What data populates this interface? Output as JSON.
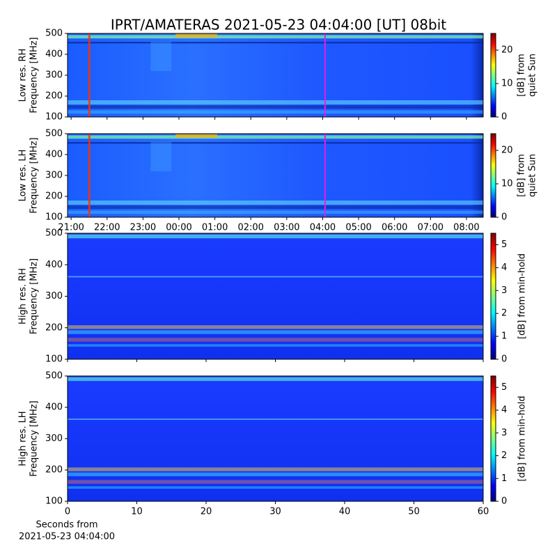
{
  "title": "IPRT/AMATERAS 2021-05-23 04:04:00 [UT]   08bit",
  "chart_data": [
    {
      "type": "heatmap",
      "ylabel": [
        "Low res. RH",
        "Frequency [MHz]"
      ],
      "ylim": [
        100,
        500
      ],
      "yticks": [
        100,
        200,
        300,
        400,
        500
      ],
      "xlim": [
        "20:54",
        "08:28"
      ],
      "xticks": [
        "21:00",
        "22:00",
        "23:00",
        "00:00",
        "01:00",
        "02:00",
        "03:00",
        "04:00",
        "05:00",
        "06:00",
        "07:00",
        "08:00"
      ],
      "show_xtick_labels": false,
      "marker_x": "04:04",
      "marker_color": "#e020e0",
      "colorbar": {
        "label": [
          "[dB] from",
          "quiet Sun"
        ],
        "lim": [
          0,
          25
        ],
        "ticks": [
          0,
          10,
          20
        ]
      }
    },
    {
      "type": "heatmap",
      "ylabel": [
        "Low res. LH",
        "Frequency [MHz]"
      ],
      "ylim": [
        100,
        500
      ],
      "yticks": [
        100,
        200,
        300,
        400,
        500
      ],
      "xlim": [
        "20:54",
        "08:28"
      ],
      "xticks": [
        "21:00",
        "22:00",
        "23:00",
        "00:00",
        "01:00",
        "02:00",
        "03:00",
        "04:00",
        "05:00",
        "06:00",
        "07:00",
        "08:00"
      ],
      "show_xtick_labels": true,
      "marker_x": "04:04",
      "marker_color": "#e020e0",
      "colorbar": {
        "label": [
          "[dB] from",
          "quiet Sun"
        ],
        "lim": [
          0,
          25
        ],
        "ticks": [
          0,
          10,
          20
        ]
      }
    },
    {
      "type": "heatmap",
      "ylabel": [
        "High res. RH",
        "Frequency [MHz]"
      ],
      "ylim": [
        100,
        500
      ],
      "yticks": [
        100,
        200,
        300,
        400,
        500
      ],
      "xlim": [
        0,
        60
      ],
      "xticks": [
        0,
        10,
        20,
        30,
        40,
        50,
        60
      ],
      "show_xtick_labels": false,
      "colorbar": {
        "label": [
          "[dB] from min-hold"
        ],
        "lim": [
          0,
          5.5
        ],
        "ticks": [
          0,
          1,
          2,
          3,
          4,
          5
        ]
      }
    },
    {
      "type": "heatmap",
      "ylabel": [
        "High res. LH",
        "Frequency [MHz]"
      ],
      "ylim": [
        100,
        500
      ],
      "yticks": [
        100,
        200,
        300,
        400,
        500
      ],
      "xlim": [
        0,
        60
      ],
      "xticks": [
        0,
        10,
        20,
        30,
        40,
        50,
        60
      ],
      "show_xtick_labels": true,
      "xlabel": [
        "Seconds from",
        "2021-05-23 04:04:00"
      ],
      "colorbar": {
        "label": [
          "[dB] from min-hold"
        ],
        "lim": [
          0,
          5.5
        ],
        "ticks": [
          0,
          1,
          2,
          3,
          4,
          5
        ]
      }
    }
  ]
}
